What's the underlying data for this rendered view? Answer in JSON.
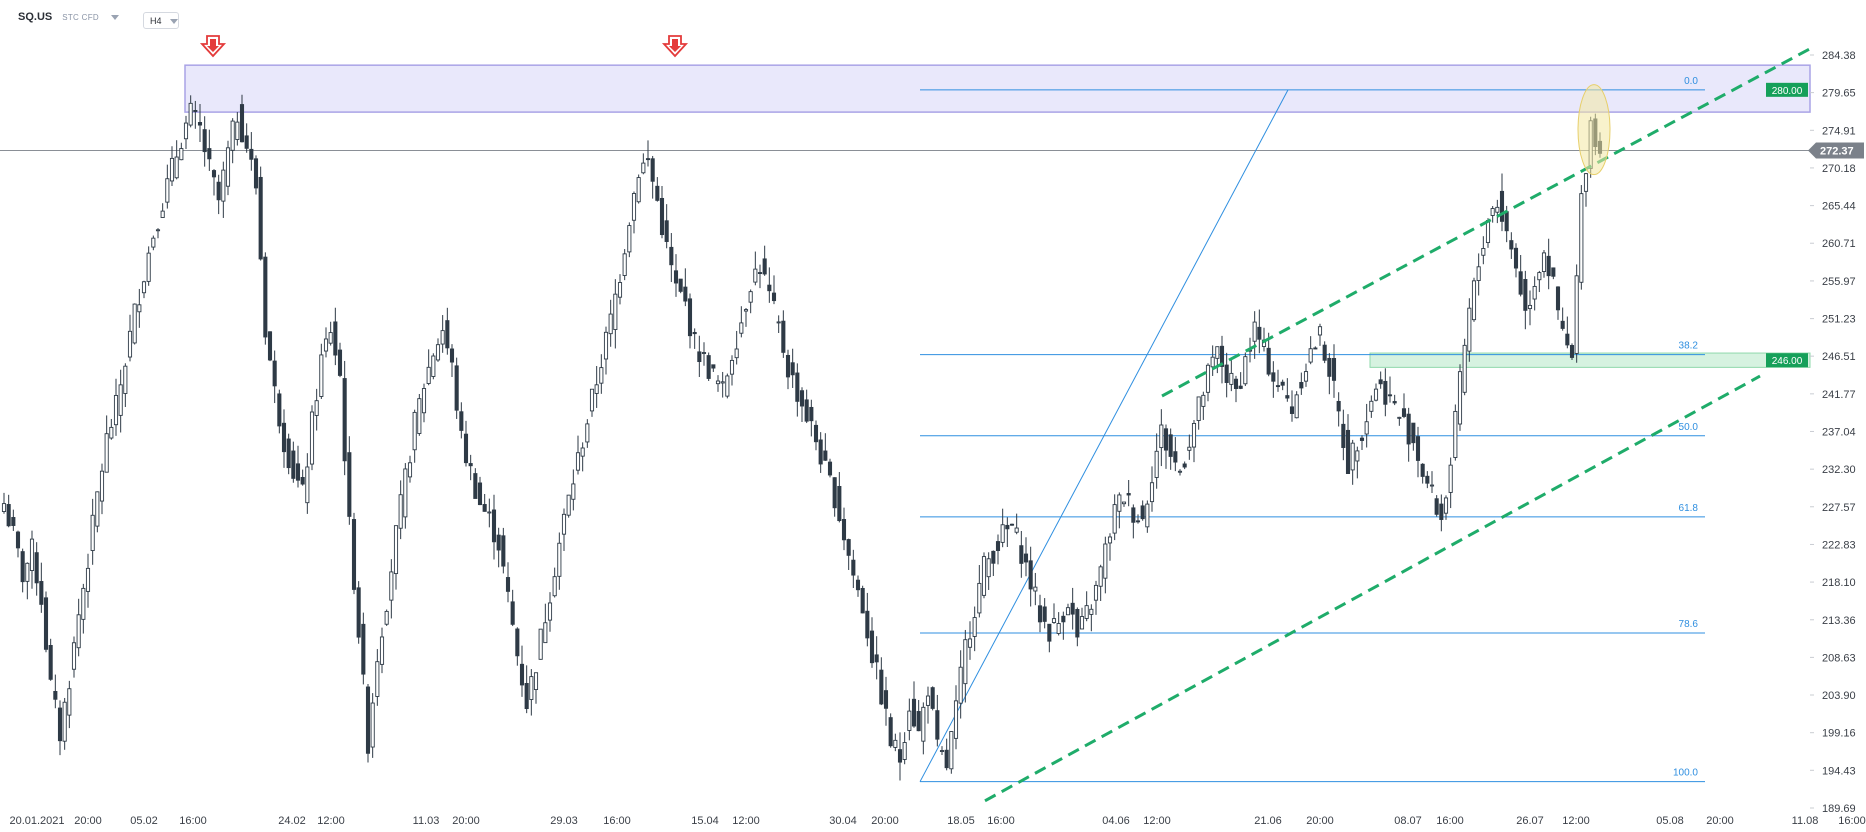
{
  "header": {
    "symbol": "SQ.US",
    "subtitle": "STC  CFD",
    "timeframe": "H4"
  },
  "price_labels": {
    "current": "272.37",
    "resistance": "280.00",
    "support": "246.00"
  },
  "colors": {
    "candle": "#2e3a46",
    "fib_line": "#2f8fe0",
    "fib_text": "#2f8fe0",
    "channel": "#1fac6a",
    "zone_fill": "#e9e8fb",
    "zone_stroke": "#a9a3e6",
    "support_zone": "#d6f2e0",
    "arrow": "#e43b3b",
    "current_price_bg": "#7b818a",
    "level_label_bg": "#16a05a",
    "highlight": "#f3e7a3"
  },
  "chart_data": {
    "type": "candlestick",
    "title": "SQ.US",
    "timeframe": "H4",
    "y_range": [
      189.69,
      284.38
    ],
    "y_ticks": [
      "284.38",
      "279.65",
      "274.91",
      "270.18",
      "265.44",
      "260.71",
      "255.97",
      "251.23",
      "246.51",
      "241.77",
      "237.04",
      "232.30",
      "227.57",
      "222.83",
      "218.10",
      "213.36",
      "208.63",
      "203.90",
      "199.16",
      "194.43",
      "189.69"
    ],
    "x_ticks": [
      "20.01.2021",
      "20:00",
      "05.02",
      "16:00",
      "24.02",
      "12:00",
      "11.03",
      "20:00",
      "29.03",
      "16:00",
      "15.04",
      "12:00",
      "30.04",
      "20:00",
      "18.05",
      "16:00",
      "04.06",
      "12:00",
      "21.06",
      "20:00",
      "08.07",
      "16:00",
      "26.07",
      "12:00",
      "05.08",
      "20:00",
      "11.08",
      "16:00"
    ],
    "price_path": [
      [
        0,
        228
      ],
      [
        2,
        224
      ],
      [
        4,
        219
      ],
      [
        6,
        222
      ],
      [
        8,
        216
      ],
      [
        10,
        205
      ],
      [
        12,
        199
      ],
      [
        14,
        206
      ],
      [
        16,
        214
      ],
      [
        18,
        221
      ],
      [
        20,
        229
      ],
      [
        22,
        236
      ],
      [
        24,
        240
      ],
      [
        26,
        246
      ],
      [
        28,
        252
      ],
      [
        30,
        257
      ],
      [
        32,
        262
      ],
      [
        34,
        266
      ],
      [
        36,
        270
      ],
      [
        38,
        274
      ],
      [
        40,
        277
      ],
      [
        42,
        275
      ],
      [
        44,
        270
      ],
      [
        46,
        266
      ],
      [
        48,
        272
      ],
      [
        50,
        277
      ],
      [
        52,
        273
      ],
      [
        54,
        268
      ],
      [
        56,
        250
      ],
      [
        58,
        242
      ],
      [
        60,
        236
      ],
      [
        62,
        232
      ],
      [
        64,
        229
      ],
      [
        66,
        238
      ],
      [
        68,
        246
      ],
      [
        70,
        250
      ],
      [
        72,
        244
      ],
      [
        74,
        225
      ],
      [
        76,
        212
      ],
      [
        78,
        198
      ],
      [
        80,
        209
      ],
      [
        82,
        216
      ],
      [
        84,
        224
      ],
      [
        86,
        231
      ],
      [
        88,
        238
      ],
      [
        90,
        243
      ],
      [
        92,
        247
      ],
      [
        94,
        250
      ],
      [
        96,
        245
      ],
      [
        98,
        236
      ],
      [
        100,
        232
      ],
      [
        102,
        228
      ],
      [
        104,
        226
      ],
      [
        106,
        223
      ],
      [
        108,
        216
      ],
      [
        110,
        209
      ],
      [
        112,
        203
      ],
      [
        114,
        208
      ],
      [
        116,
        214
      ],
      [
        118,
        220
      ],
      [
        120,
        226
      ],
      [
        122,
        231
      ],
      [
        124,
        236
      ],
      [
        126,
        241
      ],
      [
        128,
        246
      ],
      [
        130,
        251
      ],
      [
        132,
        257
      ],
      [
        134,
        264
      ],
      [
        136,
        270
      ],
      [
        138,
        271
      ],
      [
        140,
        266
      ],
      [
        142,
        260
      ],
      [
        144,
        255
      ],
      [
        146,
        253
      ],
      [
        148,
        248
      ],
      [
        150,
        246
      ],
      [
        152,
        244
      ],
      [
        154,
        242
      ],
      [
        156,
        247
      ],
      [
        158,
        251
      ],
      [
        160,
        256
      ],
      [
        162,
        258
      ],
      [
        164,
        254
      ],
      [
        166,
        250
      ],
      [
        168,
        245
      ],
      [
        170,
        242
      ],
      [
        172,
        239
      ],
      [
        174,
        236
      ],
      [
        176,
        232
      ],
      [
        178,
        229
      ],
      [
        180,
        224
      ],
      [
        182,
        219
      ],
      [
        184,
        215
      ],
      [
        186,
        209
      ],
      [
        188,
        204
      ],
      [
        190,
        198
      ],
      [
        192,
        196
      ],
      [
        194,
        203
      ],
      [
        196,
        199
      ],
      [
        198,
        205
      ],
      [
        200,
        197
      ],
      [
        202,
        195
      ],
      [
        204,
        202
      ],
      [
        206,
        210
      ],
      [
        208,
        215
      ],
      [
        210,
        220
      ],
      [
        212,
        222
      ],
      [
        214,
        224
      ],
      [
        216,
        225
      ],
      [
        218,
        222
      ],
      [
        220,
        218
      ],
      [
        222,
        214
      ],
      [
        224,
        212
      ],
      [
        226,
        213
      ],
      [
        228,
        216
      ],
      [
        230,
        211
      ],
      [
        232,
        214
      ],
      [
        234,
        217
      ],
      [
        236,
        222
      ],
      [
        238,
        227
      ],
      [
        240,
        229
      ],
      [
        242,
        227
      ],
      [
        244,
        226
      ],
      [
        246,
        232
      ],
      [
        248,
        237
      ],
      [
        250,
        234
      ],
      [
        252,
        232
      ],
      [
        254,
        236
      ],
      [
        256,
        240
      ],
      [
        258,
        244
      ],
      [
        260,
        247
      ],
      [
        262,
        244
      ],
      [
        264,
        242
      ],
      [
        266,
        246
      ],
      [
        268,
        250
      ],
      [
        270,
        247
      ],
      [
        272,
        244
      ],
      [
        274,
        242
      ],
      [
        276,
        240
      ],
      [
        278,
        244
      ],
      [
        280,
        247
      ],
      [
        282,
        249
      ],
      [
        284,
        245
      ],
      [
        286,
        239
      ],
      [
        288,
        233
      ],
      [
        290,
        236
      ],
      [
        292,
        239
      ],
      [
        294,
        243
      ],
      [
        296,
        242
      ],
      [
        298,
        240
      ],
      [
        300,
        238
      ],
      [
        302,
        236
      ],
      [
        304,
        232
      ],
      [
        306,
        229
      ],
      [
        308,
        226
      ],
      [
        310,
        233
      ],
      [
        312,
        243
      ],
      [
        314,
        252
      ],
      [
        316,
        258
      ],
      [
        318,
        264
      ],
      [
        320,
        266
      ],
      [
        322,
        262
      ],
      [
        324,
        258
      ],
      [
        326,
        252
      ],
      [
        328,
        256
      ],
      [
        330,
        260
      ],
      [
        332,
        255
      ],
      [
        334,
        249
      ],
      [
        336,
        246
      ],
      [
        338,
        266
      ],
      [
        340,
        276
      ],
      [
        342,
        272
      ]
    ],
    "fibonacci": {
      "levels": [
        {
          "label": "0.0",
          "price": 280.0
        },
        {
          "label": "38.2",
          "price": 246.7
        },
        {
          "label": "50.0",
          "price": 236.5
        },
        {
          "label": "61.8",
          "price": 226.3
        },
        {
          "label": "78.6",
          "price": 211.7
        },
        {
          "label": "100.0",
          "price": 193.0
        }
      ]
    },
    "channel": {
      "upper": [
        [
          241.5,
          "18.05"
        ],
        [
          285.5,
          "11.08"
        ]
      ],
      "lower": [
        [
          190.6,
          "18.05"
        ],
        [
          244.0,
          "11.08"
        ]
      ]
    },
    "resistance_zone": [
      277.2,
      283.1
    ],
    "support_zone": [
      245.1,
      246.9
    ],
    "current_price": 272.37,
    "markers": [
      {
        "type": "sell-arrow",
        "price": 281.5
      },
      {
        "type": "sell-arrow",
        "price": 281.5
      }
    ]
  }
}
